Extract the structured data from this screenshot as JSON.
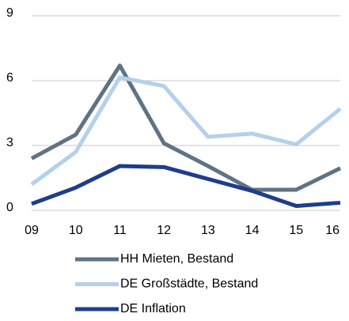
{
  "chart_data": {
    "type": "line",
    "categories": [
      "09",
      "10",
      "11",
      "12",
      "13",
      "14",
      "15",
      "16"
    ],
    "series": [
      {
        "name": "HH Mieten, Bestand",
        "color": "#5f7384",
        "values": [
          2.4,
          3.5,
          6.7,
          3.1,
          2.05,
          0.95,
          0.95,
          1.95
        ]
      },
      {
        "name": "DE Großstädte, Bestand",
        "color": "#b4d0ec",
        "values": [
          1.2,
          2.7,
          6.15,
          5.75,
          3.4,
          3.55,
          3.05,
          4.7
        ]
      },
      {
        "name": "DE Inflation",
        "color": "#1f3d8c",
        "values": [
          0.3,
          1.05,
          2.05,
          2.0,
          1.45,
          0.9,
          0.2,
          0.35
        ]
      }
    ],
    "ylim": [
      0,
      9
    ],
    "yticks": [
      0,
      3,
      6,
      9
    ],
    "grid": true
  }
}
